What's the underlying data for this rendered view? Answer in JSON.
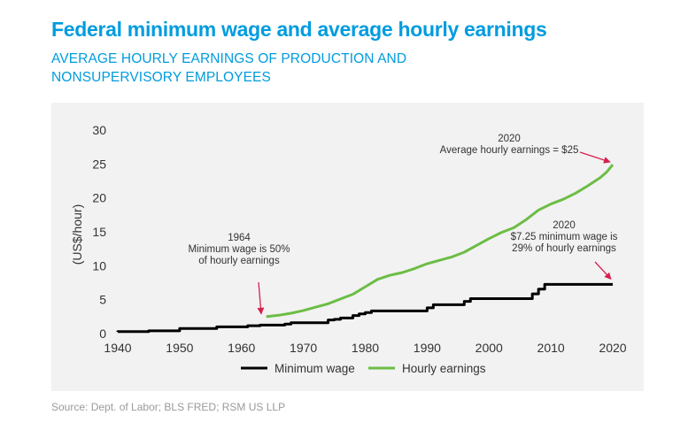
{
  "header": {
    "title": "Federal minimum wage and average hourly earnings",
    "subtitle": "AVERAGE HOURLY EARNINGS OF PRODUCTION AND NONSUPERVISORY EMPLOYEES"
  },
  "footer": {
    "source": "Source: Dept. of Labor; BLS FRED; RSM US LLP"
  },
  "colors": {
    "minimum_wage": "#000000",
    "hourly_earnings": "#6cbd45",
    "arrow": "#d6204e",
    "title": "#009cde",
    "panel": "#f2f2f2"
  },
  "annotations": [
    {
      "lines": [
        "1964",
        "Minimum wage is 50%",
        "of hourly earnings"
      ],
      "x": 1964,
      "y": 2.5
    },
    {
      "lines": [
        "2020",
        "Average hourly earnings = $25"
      ],
      "x": 2020,
      "y": 24.9
    },
    {
      "lines": [
        "2020",
        "$7.25 minimum wage is",
        "29% of hourly earnings"
      ],
      "x": 2020,
      "y": 7.25
    }
  ],
  "chart_data": {
    "type": "line",
    "title": "Federal minimum wage and average hourly earnings",
    "subtitle": "AVERAGE HOURLY EARNINGS OF PRODUCTION AND NONSUPERVISORY EMPLOYEES",
    "xlabel": "",
    "ylabel": "(US$/hour)",
    "xlim": [
      1940,
      2020
    ],
    "ylim": [
      0,
      30
    ],
    "xticks": [
      1940,
      1950,
      1960,
      1970,
      1980,
      1990,
      2000,
      2010,
      2020
    ],
    "yticks": [
      0,
      5,
      10,
      15,
      20,
      25,
      30
    ],
    "grid": false,
    "legend": "bottom",
    "series": [
      {
        "name": "Minimum wage",
        "step": true,
        "x": [
          1938,
          1939,
          1945,
          1950,
          1956,
          1961,
          1963,
          1967,
          1968,
          1974,
          1975,
          1976,
          1978,
          1979,
          1980,
          1981,
          1990,
          1991,
          1996,
          1997,
          2007,
          2008,
          2009,
          2020
        ],
        "y": [
          0.25,
          0.3,
          0.4,
          0.75,
          1.0,
          1.15,
          1.25,
          1.4,
          1.6,
          2.0,
          2.1,
          2.3,
          2.65,
          2.9,
          3.1,
          3.35,
          3.8,
          4.25,
          4.75,
          5.15,
          5.85,
          6.55,
          7.25,
          7.25
        ]
      },
      {
        "name": "Hourly earnings",
        "step": false,
        "x": [
          1964,
          1966,
          1968,
          1970,
          1972,
          1974,
          1976,
          1978,
          1980,
          1982,
          1984,
          1986,
          1988,
          1990,
          1992,
          1994,
          1996,
          1998,
          2000,
          2002,
          2004,
          2006,
          2008,
          2010,
          2012,
          2014,
          2016,
          2018,
          2019,
          2020
        ],
        "y": [
          2.5,
          2.7,
          3.0,
          3.4,
          3.9,
          4.4,
          5.1,
          5.8,
          6.9,
          8.0,
          8.6,
          9.0,
          9.6,
          10.3,
          10.8,
          11.3,
          12.0,
          13.0,
          14.0,
          14.9,
          15.6,
          16.8,
          18.2,
          19.1,
          19.8,
          20.7,
          21.8,
          23.0,
          23.8,
          24.9
        ]
      }
    ]
  }
}
